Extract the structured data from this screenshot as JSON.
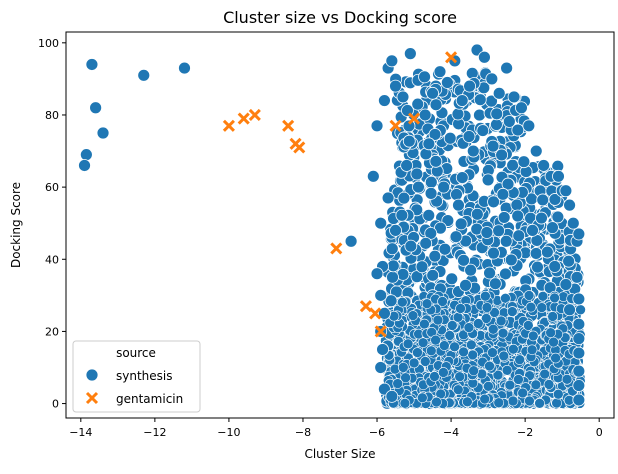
{
  "chart_data": {
    "type": "scatter",
    "title": "Cluster size vs Docking score",
    "xlabel": "Cluster Size",
    "ylabel": "Docking Score",
    "xlim": [
      -14.4,
      0.4
    ],
    "ylim": [
      -4,
      103
    ],
    "xticks": [
      -14,
      -12,
      -10,
      -8,
      -6,
      -4,
      -2,
      0
    ],
    "yticks": [
      0,
      20,
      40,
      60,
      80,
      100
    ],
    "grid": false,
    "legend": {
      "title": "source",
      "placement": "lower-left"
    },
    "dense_region": {
      "series": "synthesis",
      "x_range": [
        -5.7,
        -0.5
      ],
      "y_range": [
        0,
        30
      ],
      "description_color": "#1f77b4"
    },
    "series": [
      {
        "name": "synthesis",
        "marker": "circle",
        "color": "#1f77b4",
        "points": [
          [
            -13.7,
            94
          ],
          [
            -13.6,
            82
          ],
          [
            -13.4,
            75
          ],
          [
            -13.85,
            69
          ],
          [
            -13.9,
            66
          ],
          [
            -12.3,
            91
          ],
          [
            -11.2,
            93
          ],
          [
            -6.7,
            45
          ],
          [
            -6.1,
            63
          ],
          [
            -6.0,
            77
          ],
          [
            -5.8,
            84
          ],
          [
            -5.7,
            93
          ],
          [
            -5.6,
            95
          ],
          [
            -5.5,
            88
          ],
          [
            -5.3,
            85
          ],
          [
            -5.1,
            97
          ],
          [
            -4.9,
            83
          ],
          [
            -4.7,
            80
          ],
          [
            -4.5,
            86
          ],
          [
            -4.3,
            92
          ],
          [
            -4.1,
            89
          ],
          [
            -3.9,
            95
          ],
          [
            -3.7,
            84
          ],
          [
            -3.5,
            88
          ],
          [
            -3.3,
            98
          ],
          [
            -3.1,
            96
          ],
          [
            -2.9,
            90
          ],
          [
            -2.7,
            86
          ],
          [
            -2.5,
            93
          ],
          [
            -2.3,
            85
          ],
          [
            -2.1,
            82
          ],
          [
            -1.9,
            77
          ],
          [
            -1.7,
            70
          ],
          [
            -1.5,
            66
          ],
          [
            -1.3,
            63
          ],
          [
            -1.1,
            63
          ],
          [
            -1.0,
            59
          ],
          [
            -0.9,
            59
          ],
          [
            -0.8,
            55
          ],
          [
            -0.7,
            50
          ],
          [
            -0.6,
            45
          ],
          [
            -0.55,
            47
          ],
          [
            -0.6,
            35
          ],
          [
            -0.55,
            29
          ],
          [
            -0.55,
            22
          ],
          [
            -0.55,
            18
          ],
          [
            -0.55,
            14
          ],
          [
            -0.55,
            9
          ],
          [
            -0.55,
            5
          ],
          [
            -0.55,
            1
          ],
          [
            -5.9,
            50
          ],
          [
            -5.85,
            38
          ],
          [
            -5.9,
            30
          ],
          [
            -5.8,
            25
          ],
          [
            -5.9,
            20
          ],
          [
            -5.85,
            15
          ],
          [
            -5.9,
            10
          ],
          [
            -5.8,
            4
          ],
          [
            -5.6,
            2
          ],
          [
            -6.0,
            36
          ],
          [
            -5.7,
            57
          ],
          [
            -5.5,
            48
          ],
          [
            -5.2,
            66
          ],
          [
            -4.6,
            72
          ],
          [
            -4.2,
            60
          ],
          [
            -3.8,
            55
          ],
          [
            -3.4,
            70
          ],
          [
            -3.0,
            62
          ],
          [
            -2.6,
            58
          ],
          [
            -2.2,
            52
          ],
          [
            -1.8,
            48
          ],
          [
            -1.4,
            42
          ],
          [
            -1.2,
            38
          ],
          [
            -0.9,
            33
          ],
          [
            -0.8,
            26
          ]
        ]
      },
      {
        "name": "gentamicin",
        "marker": "x",
        "color": "#ff7f0e",
        "points": [
          [
            -10.0,
            77
          ],
          [
            -9.6,
            79
          ],
          [
            -9.3,
            80
          ],
          [
            -8.4,
            77
          ],
          [
            -8.2,
            72
          ],
          [
            -8.1,
            71
          ],
          [
            -7.1,
            43
          ],
          [
            -6.3,
            27
          ],
          [
            -6.05,
            25
          ],
          [
            -5.9,
            20
          ],
          [
            -5.5,
            77
          ],
          [
            -5.0,
            79
          ],
          [
            -4.0,
            96
          ]
        ]
      }
    ]
  }
}
